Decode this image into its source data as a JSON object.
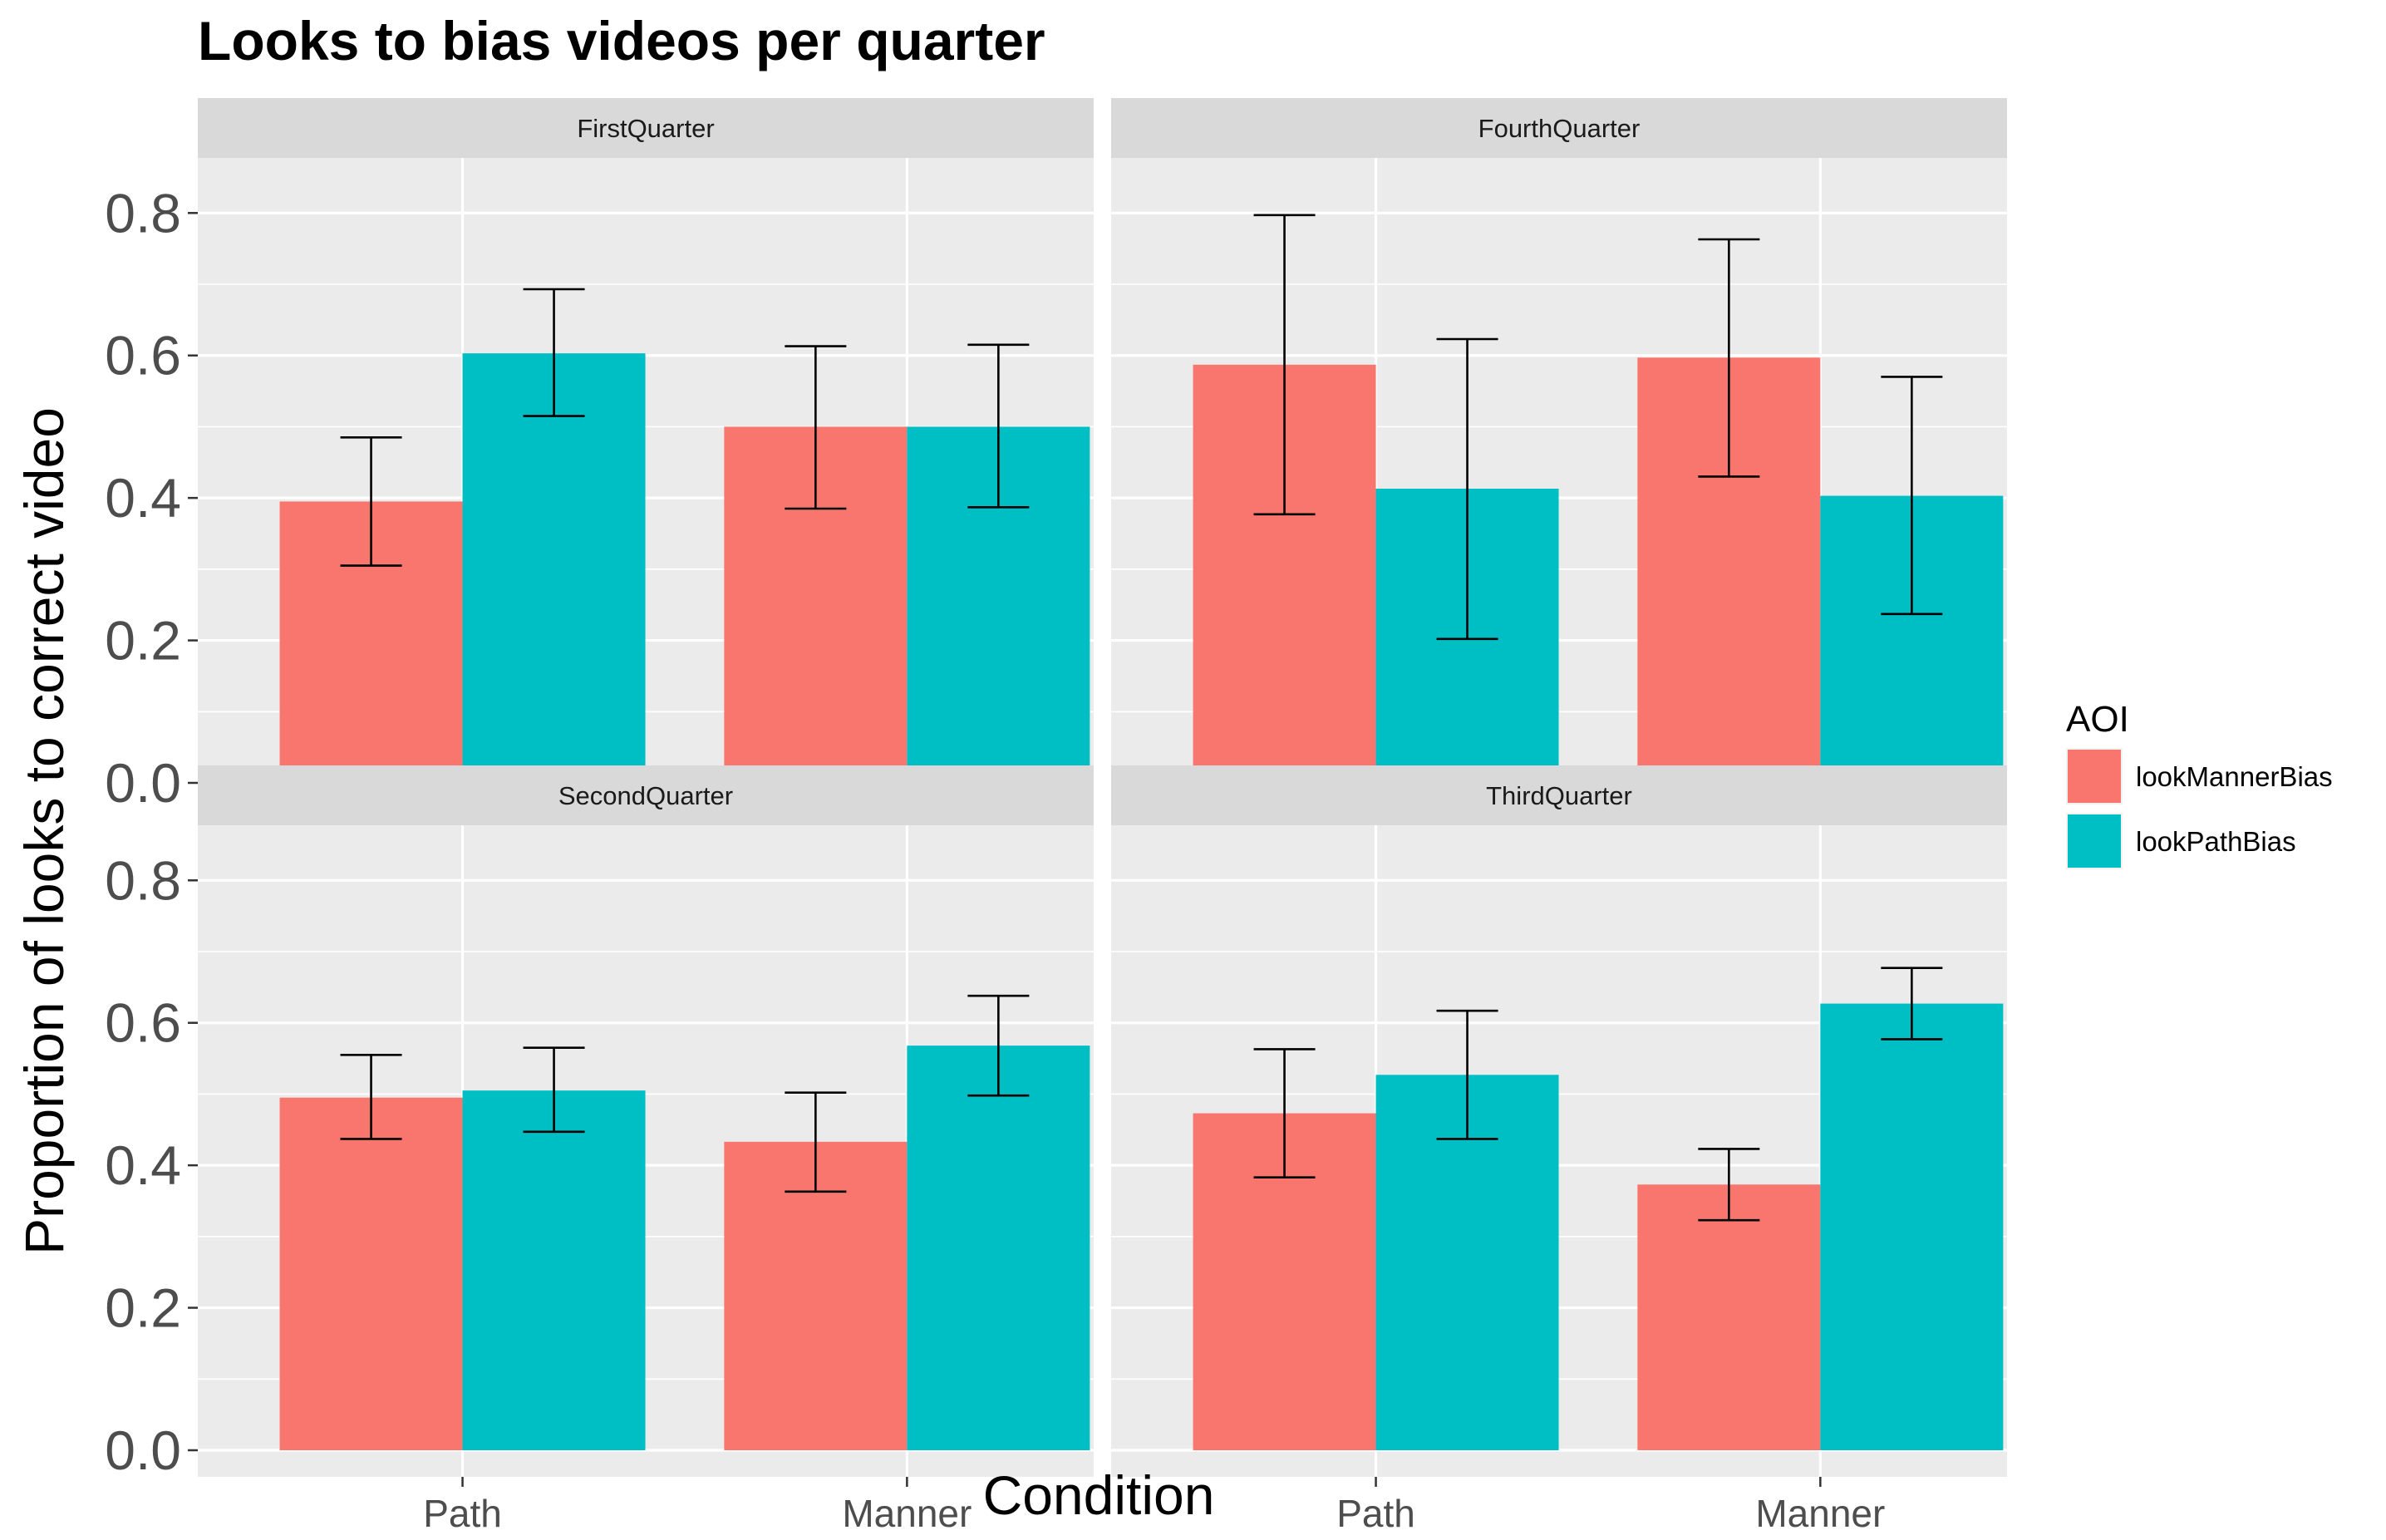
{
  "chart_data": {
    "type": "bar",
    "title": "Looks to bias videos per quarter",
    "xlabel": "Condition",
    "ylabel": "Proportion of looks to correct video",
    "ylim": [
      0,
      0.84
    ],
    "yticks": [
      "0.0",
      "0.2",
      "0.4",
      "0.6",
      "0.8"
    ],
    "grid": true,
    "legend": {
      "title": "AOI",
      "position": "right"
    },
    "categories": [
      "Path",
      "Manner"
    ],
    "series_meta": [
      {
        "name": "lookMannerBias",
        "color": "#F8766D"
      },
      {
        "name": "lookPathBias",
        "color": "#00BFC4"
      }
    ],
    "panels": [
      {
        "label": "FirstQuarter",
        "series": [
          {
            "name": "lookMannerBias",
            "values": [
              0.395,
              0.5
            ],
            "err_low": [
              0.305,
              0.385
            ],
            "err_high": [
              0.485,
              0.613
            ]
          },
          {
            "name": "lookPathBias",
            "values": [
              0.603,
              0.5
            ],
            "err_low": [
              0.515,
              0.387
            ],
            "err_high": [
              0.693,
              0.615
            ]
          }
        ]
      },
      {
        "label": "FourthQuarter",
        "series": [
          {
            "name": "lookMannerBias",
            "values": [
              0.587,
              0.597
            ],
            "err_low": [
              0.377,
              0.43
            ],
            "err_high": [
              0.797,
              0.763
            ]
          },
          {
            "name": "lookPathBias",
            "values": [
              0.413,
              0.403
            ],
            "err_low": [
              0.202,
              0.237
            ],
            "err_high": [
              0.623,
              0.57
            ]
          }
        ]
      },
      {
        "label": "SecondQuarter",
        "series": [
          {
            "name": "lookMannerBias",
            "values": [
              0.495,
              0.433
            ],
            "err_low": [
              0.437,
              0.363
            ],
            "err_high": [
              0.555,
              0.502
            ]
          },
          {
            "name": "lookPathBias",
            "values": [
              0.505,
              0.568
            ],
            "err_low": [
              0.447,
              0.498
            ],
            "err_high": [
              0.565,
              0.638
            ]
          }
        ]
      },
      {
        "label": "ThirdQuarter",
        "series": [
          {
            "name": "lookMannerBias",
            "values": [
              0.473,
              0.373
            ],
            "err_low": [
              0.383,
              0.323
            ],
            "err_high": [
              0.563,
              0.423
            ]
          },
          {
            "name": "lookPathBias",
            "values": [
              0.527,
              0.627
            ],
            "err_low": [
              0.437,
              0.577
            ],
            "err_high": [
              0.617,
              0.677
            ]
          }
        ]
      }
    ]
  }
}
